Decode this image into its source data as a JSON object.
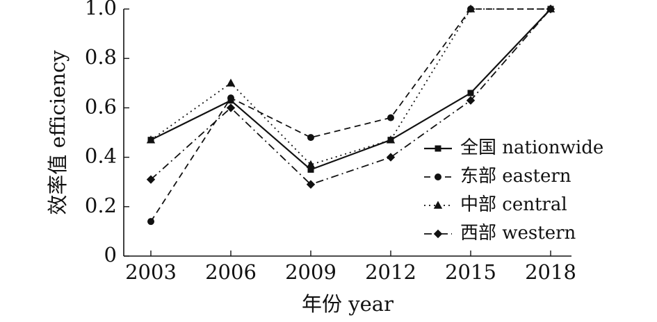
{
  "chart_data": {
    "type": "line",
    "x": [
      2003,
      2006,
      2009,
      2012,
      2015,
      2018
    ],
    "xlabel": "年份 year",
    "ylabel": "效率值 efficiency",
    "ylim": [
      0,
      1
    ],
    "yticks": [
      "0",
      "0.2",
      "0.4",
      "0.6",
      "0.8",
      "1.0"
    ],
    "xticks": [
      "2003",
      "2006",
      "2009",
      "2012",
      "2015",
      "2018"
    ],
    "grid": false,
    "legend_position": "right",
    "series": [
      {
        "name": "全国 nationwide",
        "values": [
          0.47,
          0.63,
          0.35,
          0.47,
          0.66,
          1.0
        ],
        "marker": "square",
        "line_style": "solid",
        "color": "#111111"
      },
      {
        "name": "东部 eastern",
        "values": [
          0.14,
          0.64,
          0.48,
          0.56,
          1.0,
          1.0
        ],
        "marker": "circle",
        "line_style": "dashed",
        "color": "#111111"
      },
      {
        "name": "中部 central",
        "values": [
          0.47,
          0.7,
          0.37,
          0.47,
          1.0,
          1.0
        ],
        "marker": "triangle",
        "line_style": "dotted",
        "color": "#111111"
      },
      {
        "name": "西部 western",
        "values": [
          0.31,
          0.6,
          0.29,
          0.4,
          0.63,
          1.0
        ],
        "marker": "diamond",
        "line_style": "dashdot",
        "color": "#111111"
      }
    ]
  }
}
